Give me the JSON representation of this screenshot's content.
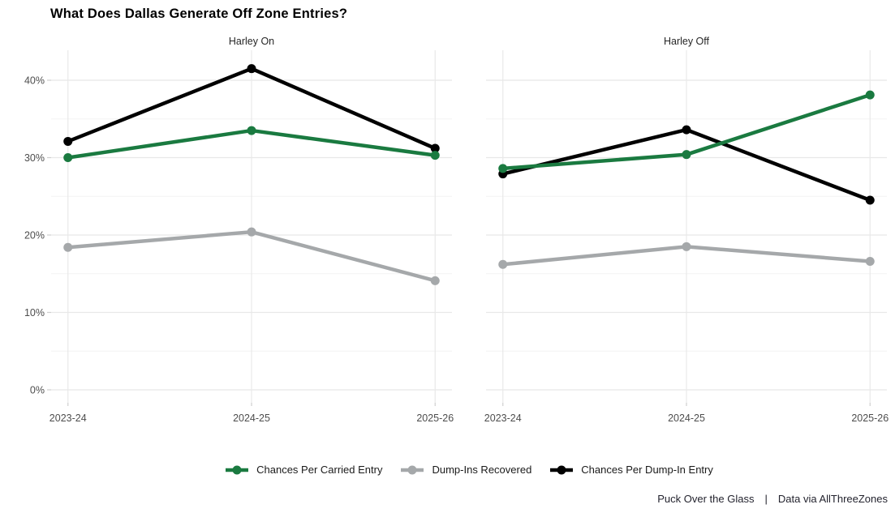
{
  "title": "What Does Dallas Generate Off Zone Entries?",
  "chart_data": {
    "type": "line",
    "categories": [
      "2023-24",
      "2024-25",
      "2025-26"
    ],
    "xlabel": "",
    "ylabel": "",
    "y_axis": {
      "tick_values": [
        0,
        10,
        20,
        30,
        40
      ],
      "tick_labels": [
        "0%",
        "10%",
        "20%",
        "30%",
        "40%"
      ],
      "minor_tick_values": [
        5,
        15,
        25,
        35
      ],
      "range": [
        0,
        40
      ]
    },
    "grid": "on",
    "legend_position": "bottom",
    "facets": [
      {
        "label": "Harley On",
        "series": [
          {
            "name": "Chances Per Carried Entry",
            "color": "#1a7a40",
            "values": [
              30.0,
              33.5,
              30.3
            ]
          },
          {
            "name": "Dump-Ins Recovered",
            "color": "#a5a8aa",
            "values": [
              18.4,
              20.4,
              14.1
            ]
          },
          {
            "name": "Chances Per Dump-In Entry",
            "color": "#000000",
            "values": [
              32.1,
              41.5,
              31.2
            ]
          }
        ]
      },
      {
        "label": "Harley Off",
        "series": [
          {
            "name": "Chances Per Carried Entry",
            "color": "#1a7a40",
            "values": [
              28.6,
              30.4,
              38.1
            ]
          },
          {
            "name": "Dump-Ins Recovered",
            "color": "#a5a8aa",
            "values": [
              16.2,
              18.5,
              16.6
            ]
          },
          {
            "name": "Chances Per Dump-In Entry",
            "color": "#000000",
            "values": [
              27.9,
              33.6,
              24.5
            ]
          }
        ]
      }
    ],
    "draw_order": [
      1,
      2,
      0
    ]
  },
  "legend": [
    {
      "label": "Chances Per Carried Entry",
      "color": "#1a7a40"
    },
    {
      "label": "Dump-Ins Recovered",
      "color": "#a5a8aa"
    },
    {
      "label": "Chances Per Dump-In Entry",
      "color": "#000000"
    }
  ],
  "footer": {
    "left": "Puck Over the Glass",
    "separator": "|",
    "right": "Data via AllThreeZones"
  },
  "colors": {
    "background": "#ffffff",
    "grid_major": "#e8e8e8",
    "grid_minor": "#f4f4f4",
    "axis_text": "#4d4d4d",
    "tick_mark": "#cfcfcf",
    "series_green": "#1a7a40",
    "series_gray": "#a5a8aa",
    "series_black": "#000000"
  }
}
